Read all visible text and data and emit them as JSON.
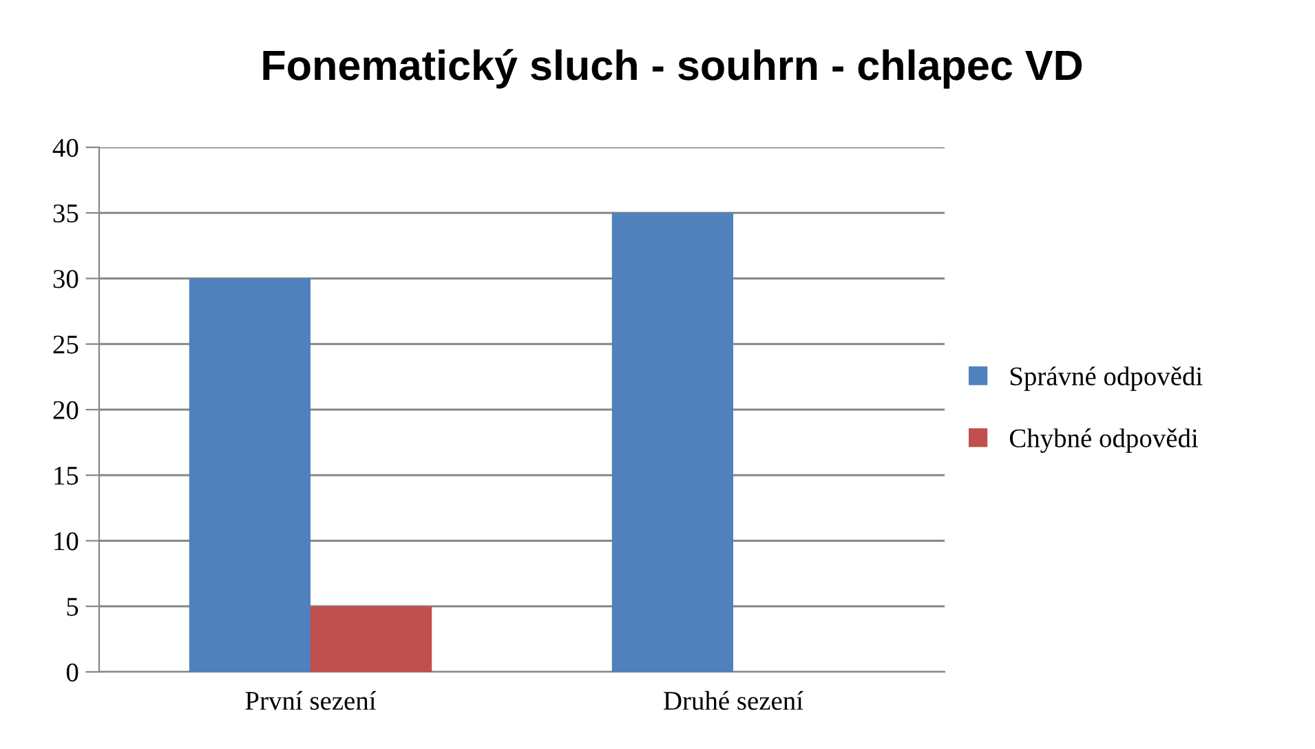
{
  "chart_data": {
    "type": "bar",
    "title": "Fonematický sluch - souhrn - chlapec VD",
    "categories": [
      "První sezení",
      "Druhé sezení"
    ],
    "series": [
      {
        "name": "Správné odpovědi",
        "color": "#4f81bd",
        "values": [
          30,
          35
        ]
      },
      {
        "name": "Chybné odpovědi",
        "color": "#c0504d",
        "values": [
          5,
          0
        ]
      }
    ],
    "ylim": [
      0,
      40
    ],
    "yticks": [
      0,
      5,
      10,
      15,
      20,
      25,
      30,
      35,
      40
    ],
    "grid": "y",
    "legend": "right"
  }
}
